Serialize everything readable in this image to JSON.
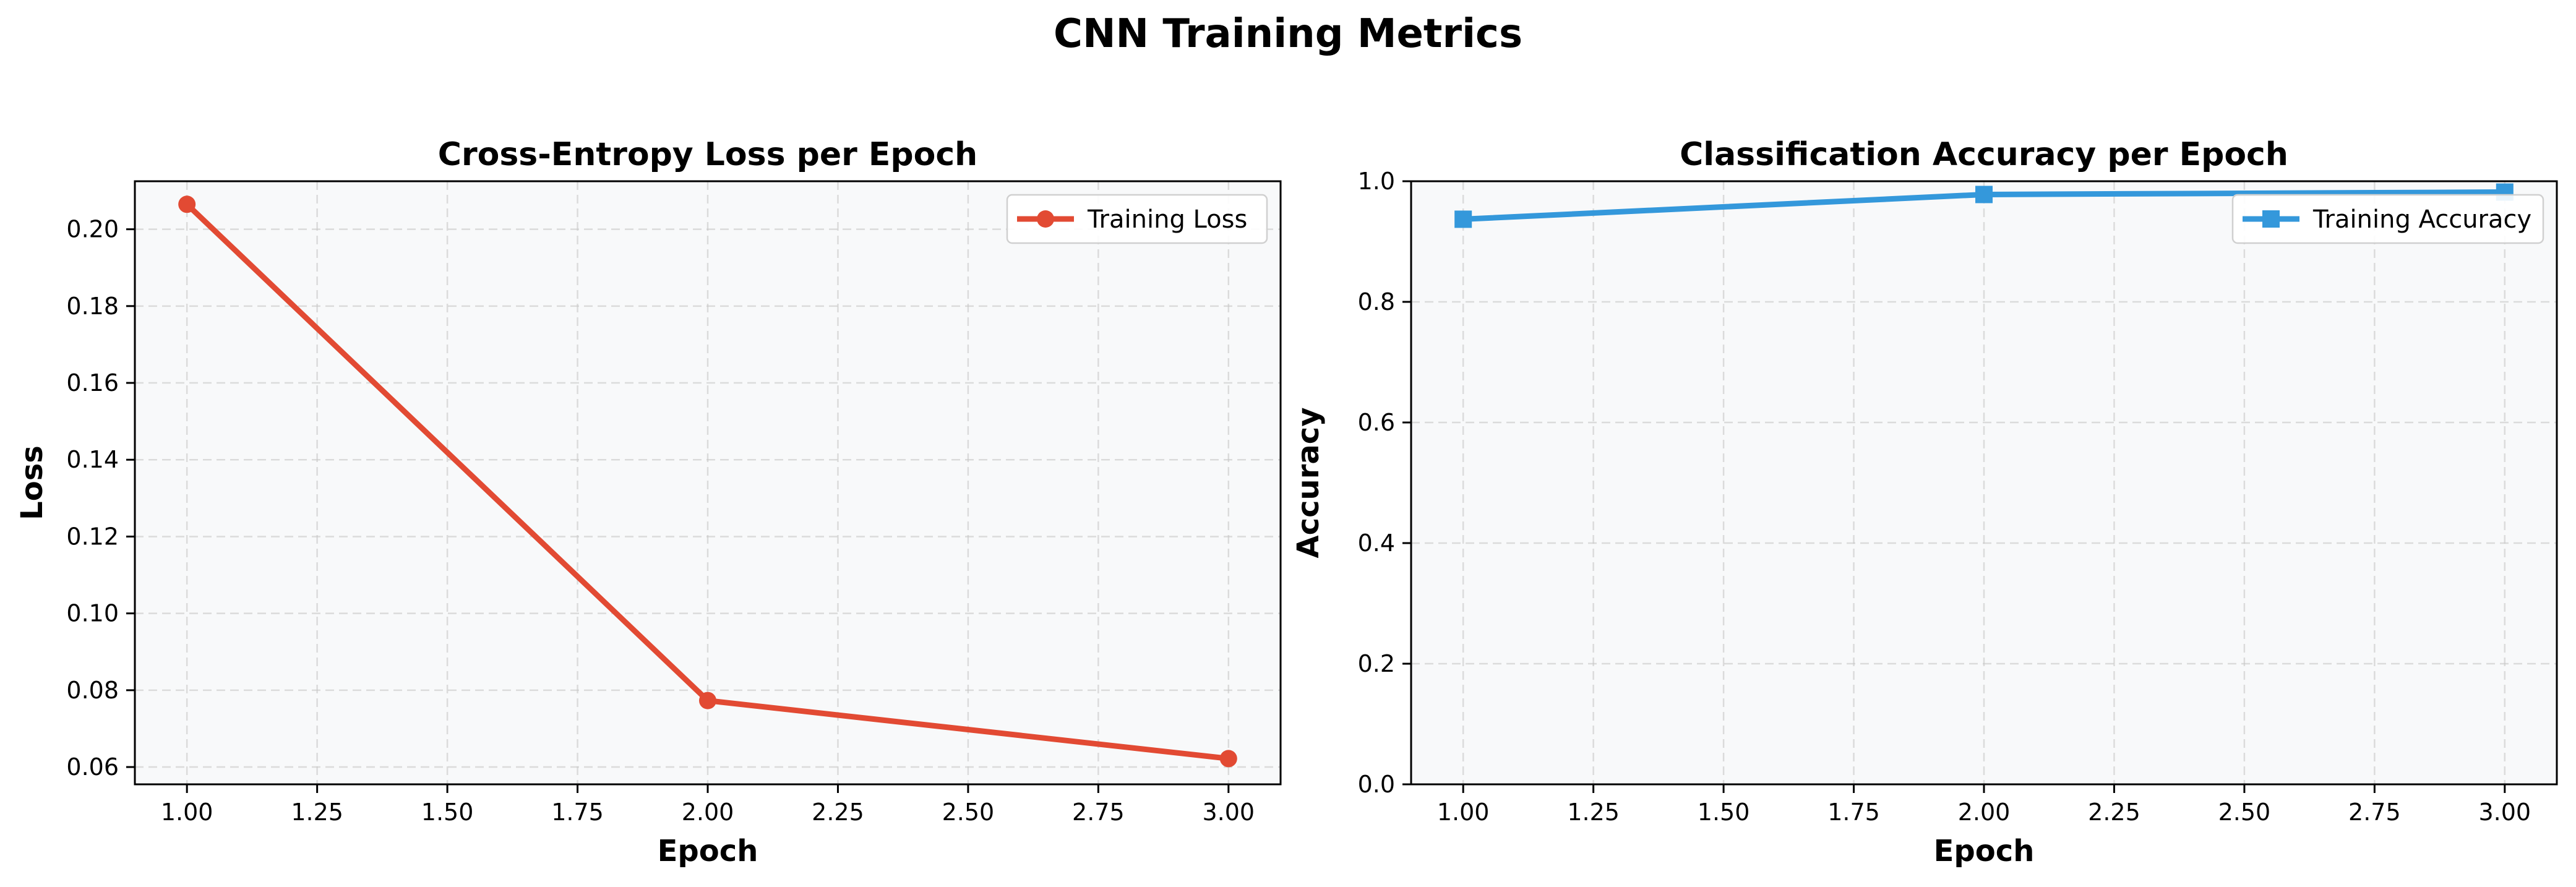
{
  "figure": {
    "title": "CNN Training Metrics"
  },
  "chart_data": [
    {
      "type": "line",
      "title": "Cross-Entropy Loss per Epoch",
      "xlabel": "Epoch",
      "ylabel": "Loss",
      "x": [
        1,
        2,
        3
      ],
      "xlim": [
        0.9,
        3.1
      ],
      "ylim": [
        0.0555,
        0.2125
      ],
      "xticks": [
        1.0,
        1.25,
        1.5,
        1.75,
        2.0,
        2.25,
        2.5,
        2.75,
        3.0
      ],
      "xtick_labels": [
        "1.00",
        "1.25",
        "1.50",
        "1.75",
        "2.00",
        "2.25",
        "2.50",
        "2.75",
        "3.00"
      ],
      "yticks": [
        0.06,
        0.08,
        0.1,
        0.12,
        0.14,
        0.16,
        0.18,
        0.2
      ],
      "ytick_labels": [
        "0.06",
        "0.08",
        "0.10",
        "0.12",
        "0.14",
        "0.16",
        "0.18",
        "0.20"
      ],
      "grid": true,
      "legend": "top-right",
      "series": [
        {
          "name": "Training Loss",
          "values": [
            0.2065,
            0.0773,
            0.0622
          ],
          "color": "#e24a33",
          "marker": "circle"
        }
      ]
    },
    {
      "type": "line",
      "title": "Classification Accuracy per Epoch",
      "xlabel": "Epoch",
      "ylabel": "Accuracy",
      "x": [
        1,
        2,
        3
      ],
      "xlim": [
        0.9,
        3.1
      ],
      "ylim": [
        0.0,
        1.0
      ],
      "xticks": [
        1.0,
        1.25,
        1.5,
        1.75,
        2.0,
        2.25,
        2.5,
        2.75,
        3.0
      ],
      "xtick_labels": [
        "1.00",
        "1.25",
        "1.50",
        "1.75",
        "2.00",
        "2.25",
        "2.50",
        "2.75",
        "3.00"
      ],
      "yticks": [
        0.0,
        0.2,
        0.4,
        0.6,
        0.8,
        1.0
      ],
      "ytick_labels": [
        "0.0",
        "0.2",
        "0.4",
        "0.6",
        "0.8",
        "1.0"
      ],
      "grid": true,
      "legend": "top-right",
      "series": [
        {
          "name": "Training Accuracy",
          "values": [
            0.937,
            0.978,
            0.982
          ],
          "color": "#3498db",
          "marker": "square"
        }
      ]
    }
  ]
}
